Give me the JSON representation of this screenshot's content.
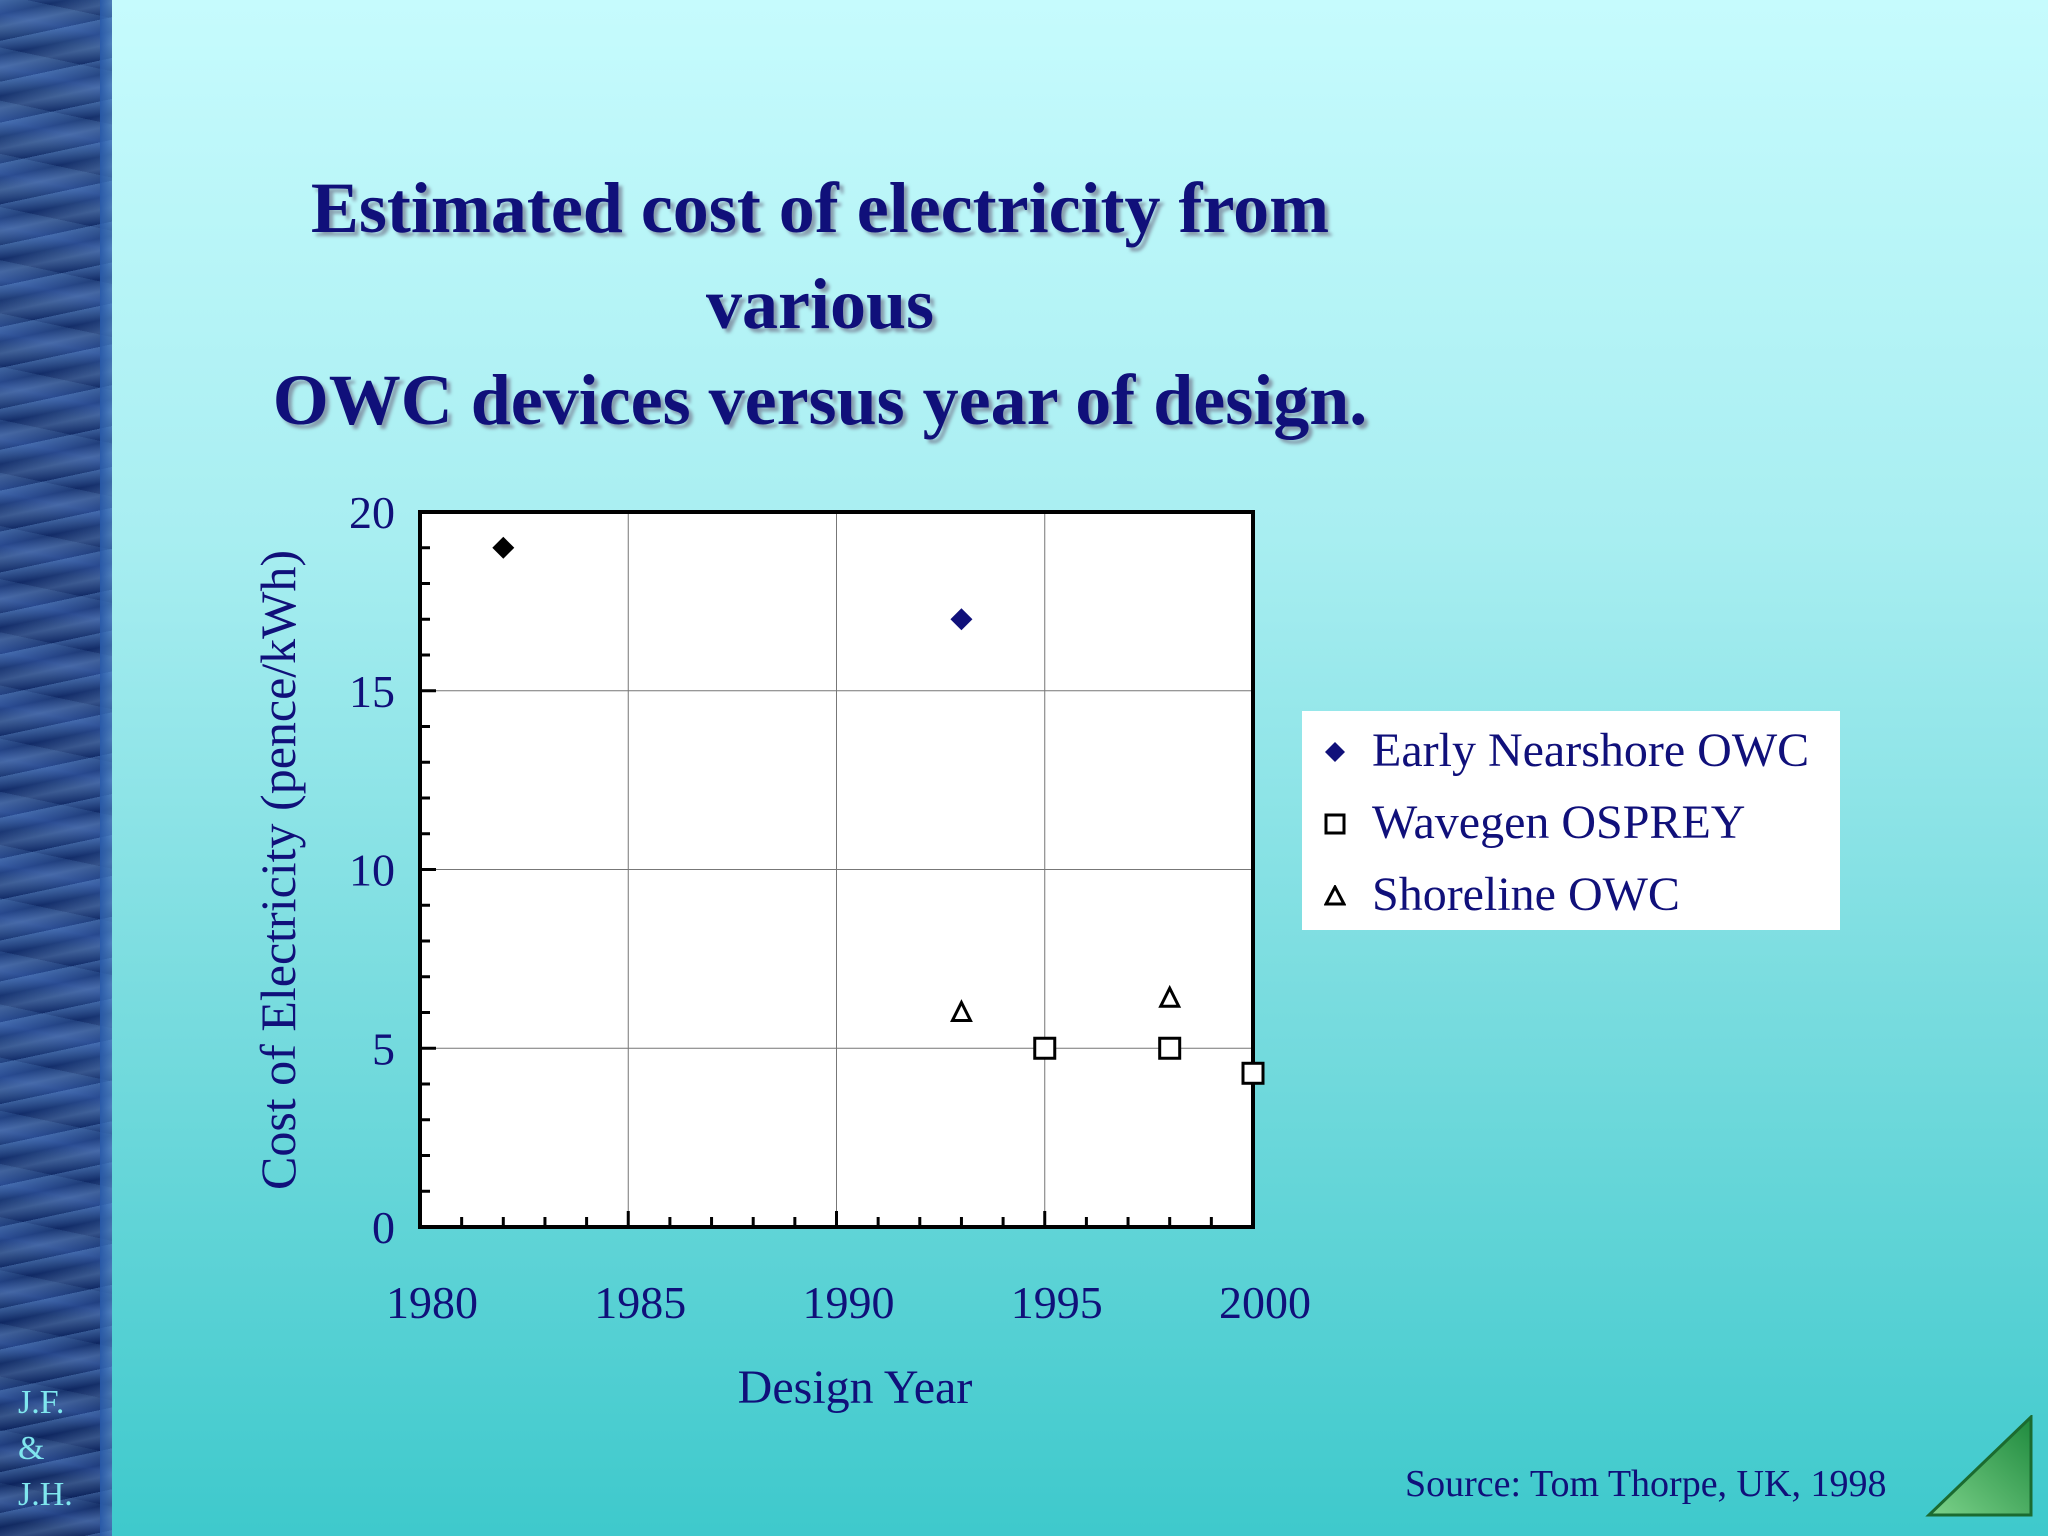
{
  "slide": {
    "title_line1": "Estimated cost of electricity from various",
    "title_line2": "OWC devices versus year of design.",
    "initials": [
      "J.F.",
      "&",
      "J.H."
    ],
    "source": "Source: Tom Thorpe, UK, 1998",
    "text_color": "#10107a",
    "nav_icon": "next-slide-triangle-icon"
  },
  "chart_data": {
    "type": "scatter",
    "title": "Estimated cost of electricity from various OWC devices versus year of design.",
    "xlabel": "Design Year",
    "ylabel": "Cost of Electricity (pence/kWh)",
    "xlim": [
      1980,
      2000
    ],
    "ylim": [
      0,
      20
    ],
    "xticks": [
      1980,
      1985,
      1990,
      1995,
      2000
    ],
    "yticks": [
      0,
      5,
      10,
      15,
      20
    ],
    "grid": true,
    "legend_position": "right",
    "series": [
      {
        "name": "Early Nearshore OWC",
        "marker": "diamond",
        "color": "#10107a",
        "points": [
          {
            "x": 1982,
            "y": 19,
            "color": "#000000"
          },
          {
            "x": 1993,
            "y": 17,
            "color": "#10107a"
          }
        ]
      },
      {
        "name": "Wavegen OSPREY",
        "marker": "square-open",
        "color": "#000000",
        "points": [
          {
            "x": 1995,
            "y": 5
          },
          {
            "x": 1998,
            "y": 5
          },
          {
            "x": 2000,
            "y": 4.3
          }
        ]
      },
      {
        "name": "Shoreline OWC",
        "marker": "triangle-open",
        "color": "#000000",
        "points": [
          {
            "x": 1993,
            "y": 6
          },
          {
            "x": 1998,
            "y": 6.4
          }
        ]
      }
    ]
  }
}
